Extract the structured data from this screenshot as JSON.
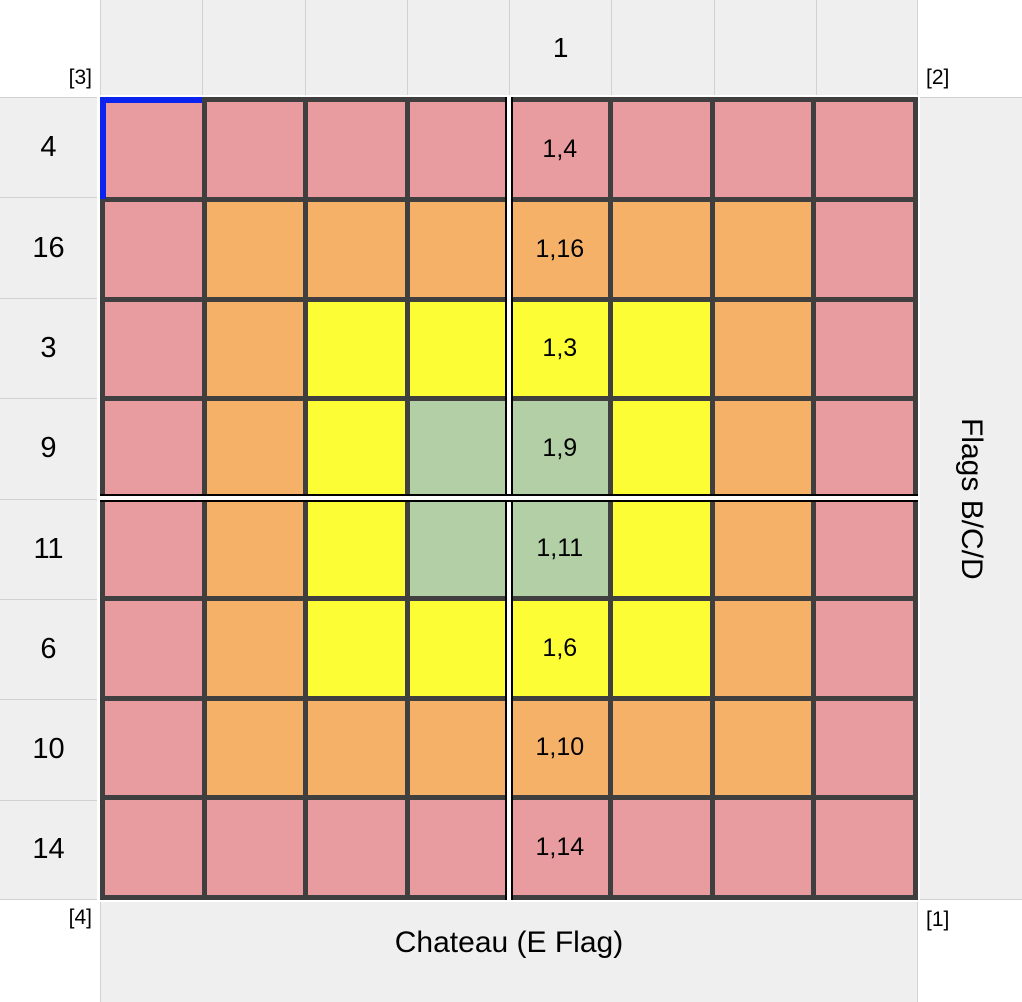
{
  "chart_data": {
    "type": "heatmap",
    "title": "",
    "row_labels": [
      "4",
      "16",
      "3",
      "9",
      "11",
      "6",
      "10",
      "14"
    ],
    "col_labels": [
      "",
      "",
      "",
      "",
      "1",
      "",
      "",
      ""
    ],
    "right_label": "Flags B/C/D",
    "bottom_label": "Chateau (E Flag)",
    "corner_labels": {
      "top_left": "[3]",
      "top_right": "[2]",
      "bottom_left": "[4]",
      "bottom_right": "[1]"
    },
    "cell_colors": [
      [
        "pink",
        "pink",
        "pink",
        "pink",
        "pink",
        "pink",
        "pink",
        "pink"
      ],
      [
        "pink",
        "orange",
        "orange",
        "orange",
        "orange",
        "orange",
        "orange",
        "pink"
      ],
      [
        "pink",
        "orange",
        "yellow",
        "yellow",
        "yellow",
        "yellow",
        "orange",
        "pink"
      ],
      [
        "pink",
        "orange",
        "yellow",
        "green",
        "green",
        "yellow",
        "orange",
        "pink"
      ],
      [
        "pink",
        "orange",
        "yellow",
        "green",
        "green",
        "yellow",
        "orange",
        "pink"
      ],
      [
        "pink",
        "orange",
        "yellow",
        "yellow",
        "yellow",
        "yellow",
        "orange",
        "pink"
      ],
      [
        "pink",
        "orange",
        "orange",
        "orange",
        "orange",
        "orange",
        "orange",
        "pink"
      ],
      [
        "pink",
        "pink",
        "pink",
        "pink",
        "pink",
        "pink",
        "pink",
        "pink"
      ]
    ],
    "cell_labels": [
      [
        "",
        "",
        "",
        "",
        "1,4",
        "",
        "",
        ""
      ],
      [
        "",
        "",
        "",
        "",
        "1,16",
        "",
        "",
        ""
      ],
      [
        "",
        "",
        "",
        "",
        "1,3",
        "",
        "",
        ""
      ],
      [
        "",
        "",
        "",
        "",
        "1,9",
        "",
        "",
        ""
      ],
      [
        "",
        "",
        "",
        "",
        "1,11",
        "",
        "",
        ""
      ],
      [
        "",
        "",
        "",
        "",
        "1,6",
        "",
        "",
        ""
      ],
      [
        "",
        "",
        "",
        "",
        "1,10",
        "",
        "",
        ""
      ],
      [
        "",
        "",
        "",
        "",
        "1,14",
        "",
        "",
        ""
      ]
    ],
    "selected_cell": {
      "row_index": 0,
      "col_index": 0
    },
    "crosshair": {
      "vertical_after_col": 4,
      "horizontal_after_row": 4
    },
    "legend_position": "none",
    "grid_on": true
  },
  "colors": {
    "pink": "#E99CA0",
    "orange": "#F5B168",
    "yellow": "#FDFD36",
    "green": "#B2CFA5",
    "gutter_bg": "#EFEFEF",
    "gutter_line": "#D2D2D2",
    "grid_border": "#3F3F3F",
    "crosshair_line": "#000000",
    "selection_blue": "#0A23EE",
    "page_bg": "#FFFFFF",
    "text": "#000000"
  }
}
